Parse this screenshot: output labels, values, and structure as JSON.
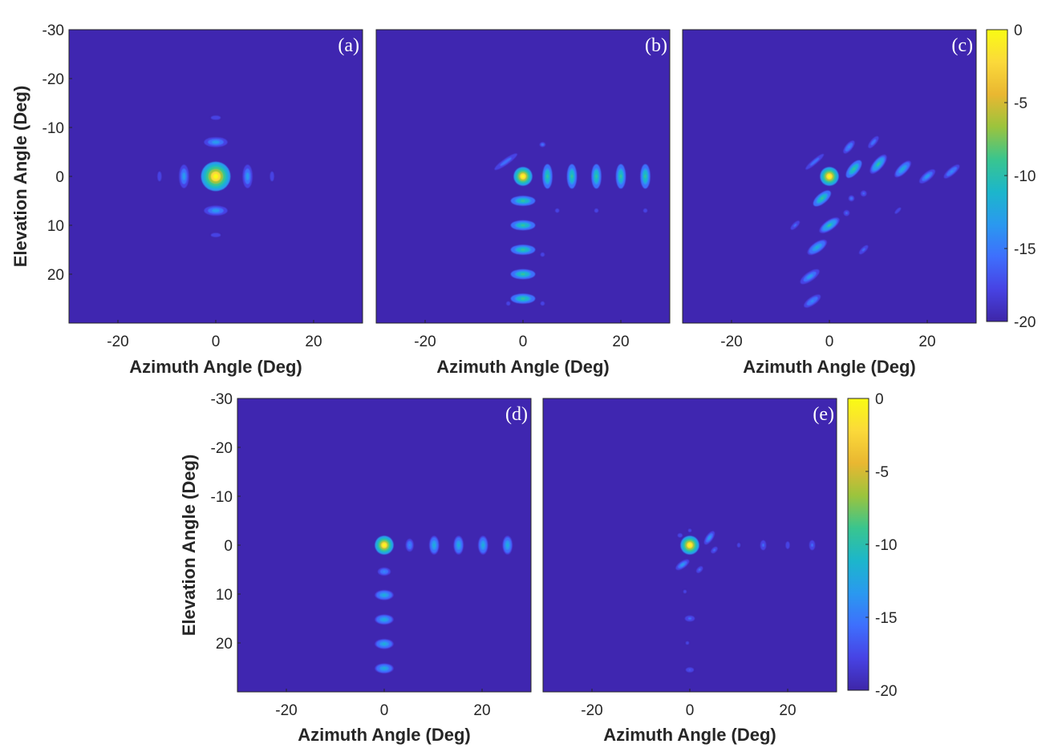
{
  "colors": {
    "background": "#3f26b0",
    "colormap": [
      "#3e26a8",
      "#4743e4",
      "#3e6ffd",
      "#2a99ef",
      "#1cb6cb",
      "#39c58f",
      "#9bc43d",
      "#e9b731",
      "#fbd93a",
      "#f9fb14"
    ]
  },
  "chart_data": [
    {
      "type": "heatmap",
      "label": "(a)",
      "xlabel": "Azimuth Angle (Deg)",
      "ylabel": "Elevation Angle (Deg)",
      "xlim": [
        -30,
        30
      ],
      "ylim": [
        -30,
        30
      ],
      "y_reversed": true,
      "xticks": [
        -20,
        0,
        20
      ],
      "yticks": [
        -30,
        -20,
        -10,
        0,
        10,
        20
      ],
      "colorbar": false,
      "lobes": [
        {
          "az": 0,
          "el": 0,
          "level_db": 0,
          "w": 3.0,
          "h": 3.0
        },
        {
          "az": -6.5,
          "el": 0,
          "level_db": -13,
          "w": 1.0,
          "h": 2.4
        },
        {
          "az": 6.5,
          "el": 0,
          "level_db": -13,
          "w": 1.0,
          "h": 2.4
        },
        {
          "az": -11.5,
          "el": 0,
          "level_db": -17,
          "w": 0.5,
          "h": 1.2
        },
        {
          "az": 11.5,
          "el": 0,
          "level_db": -17,
          "w": 0.5,
          "h": 1.2
        },
        {
          "az": 0,
          "el": -7,
          "level_db": -13,
          "w": 2.4,
          "h": 1.0
        },
        {
          "az": 0,
          "el": 7,
          "level_db": -13,
          "w": 2.4,
          "h": 1.0
        },
        {
          "az": 0,
          "el": -12,
          "level_db": -17,
          "w": 1.2,
          "h": 0.5
        },
        {
          "az": 0,
          "el": 12,
          "level_db": -17,
          "w": 1.2,
          "h": 0.5
        }
      ]
    },
    {
      "type": "heatmap",
      "label": "(b)",
      "xlabel": "Azimuth Angle (Deg)",
      "ylabel": "",
      "xlim": [
        -30,
        30
      ],
      "ylim": [
        -30,
        30
      ],
      "y_reversed": true,
      "xticks": [
        -20,
        0,
        20
      ],
      "yticks": [],
      "colorbar": false,
      "lobes": [
        {
          "az": 0,
          "el": 0,
          "level_db": 0,
          "w": 1.9,
          "h": 1.9
        },
        {
          "az": 5,
          "el": 0,
          "level_db": -8.5,
          "w": 1.0,
          "h": 2.5
        },
        {
          "az": 10,
          "el": 0,
          "level_db": -8.5,
          "w": 1.0,
          "h": 2.5
        },
        {
          "az": 15,
          "el": 0,
          "level_db": -8.5,
          "w": 1.0,
          "h": 2.5
        },
        {
          "az": 20,
          "el": 0,
          "level_db": -8.5,
          "w": 1.0,
          "h": 2.5
        },
        {
          "az": 25,
          "el": 0,
          "level_db": -8.5,
          "w": 1.0,
          "h": 2.5
        },
        {
          "az": 0,
          "el": 5,
          "level_db": -8.5,
          "w": 2.5,
          "h": 1.0
        },
        {
          "az": 0,
          "el": 10,
          "level_db": -8.5,
          "w": 2.5,
          "h": 1.0
        },
        {
          "az": 0,
          "el": 15,
          "level_db": -8.5,
          "w": 2.5,
          "h": 1.0
        },
        {
          "az": 0,
          "el": 20,
          "level_db": -8.5,
          "w": 2.5,
          "h": 1.0
        },
        {
          "az": 0,
          "el": 25,
          "level_db": -8.5,
          "w": 2.5,
          "h": 1.0
        },
        {
          "az": -3.5,
          "el": -3,
          "level_db": -15,
          "w": 2.8,
          "h": 0.6,
          "rot": -35
        },
        {
          "az": 4,
          "el": -6.5,
          "level_db": -15,
          "w": 0.6,
          "h": 0.5
        },
        {
          "az": 7,
          "el": 7,
          "level_db": -17,
          "w": 0.5,
          "h": 0.5
        },
        {
          "az": 15,
          "el": 7,
          "level_db": -17,
          "w": 0.5,
          "h": 0.5
        },
        {
          "az": 25,
          "el": 7,
          "level_db": -17,
          "w": 0.5,
          "h": 0.5
        },
        {
          "az": 4,
          "el": 16,
          "level_db": -17,
          "w": 0.5,
          "h": 0.5
        },
        {
          "az": -3,
          "el": 26,
          "level_db": -17,
          "w": 0.5,
          "h": 0.5
        },
        {
          "az": 4,
          "el": 26,
          "level_db": -17,
          "w": 0.5,
          "h": 0.5
        }
      ]
    },
    {
      "type": "heatmap",
      "label": "(c)",
      "xlabel": "Azimuth Angle (Deg)",
      "ylabel": "",
      "xlim": [
        -30,
        30
      ],
      "ylim": [
        -30,
        30
      ],
      "y_reversed": true,
      "xticks": [
        -20,
        0,
        20
      ],
      "yticks": [],
      "colorbar": true,
      "colorbar_ticks": [
        0,
        -5,
        -10,
        -15,
        -20
      ],
      "clim": [
        -20,
        0
      ],
      "lobes": [
        {
          "az": 0,
          "el": 0,
          "level_db": 0,
          "w": 1.9,
          "h": 1.9
        },
        {
          "az": 5,
          "el": -1.5,
          "level_db": -8.5,
          "w": 2.2,
          "h": 1.0,
          "rot": -50
        },
        {
          "az": 10,
          "el": -2.5,
          "level_db": -9.5,
          "w": 2.4,
          "h": 1.0,
          "rot": -50
        },
        {
          "az": 15,
          "el": -1.5,
          "level_db": -11,
          "w": 2.2,
          "h": 0.9,
          "rot": -45
        },
        {
          "az": 20,
          "el": 0,
          "level_db": -13,
          "w": 2.0,
          "h": 0.8,
          "rot": -40
        },
        {
          "az": 25,
          "el": -1,
          "level_db": -14,
          "w": 2.0,
          "h": 0.7,
          "rot": -40
        },
        {
          "az": -1.5,
          "el": 4.5,
          "level_db": -8.5,
          "w": 2.2,
          "h": 1.0,
          "rot": -40
        },
        {
          "az": 0,
          "el": 10,
          "level_db": -9.5,
          "w": 2.4,
          "h": 1.0,
          "rot": -35
        },
        {
          "az": -2.5,
          "el": 14.5,
          "level_db": -11,
          "w": 2.3,
          "h": 1.0,
          "rot": -35
        },
        {
          "az": -4,
          "el": 20.5,
          "level_db": -13,
          "w": 2.3,
          "h": 0.9,
          "rot": -35
        },
        {
          "az": -3.5,
          "el": 25.5,
          "level_db": -14,
          "w": 2.0,
          "h": 0.8,
          "rot": -35
        },
        {
          "az": 4,
          "el": -6,
          "level_db": -14,
          "w": 1.6,
          "h": 0.7,
          "rot": -50
        },
        {
          "az": 9,
          "el": -7,
          "level_db": -15,
          "w": 1.5,
          "h": 0.6,
          "rot": -50
        },
        {
          "az": -3,
          "el": -3,
          "level_db": -15,
          "w": 2.4,
          "h": 0.5,
          "rot": -40
        },
        {
          "az": 4.5,
          "el": 4.5,
          "level_db": -15,
          "w": 0.6,
          "h": 0.6
        },
        {
          "az": 7,
          "el": 3.5,
          "level_db": -16,
          "w": 0.6,
          "h": 0.6
        },
        {
          "az": 3.5,
          "el": 7.5,
          "level_db": -16,
          "w": 0.6,
          "h": 0.6
        },
        {
          "az": -7,
          "el": 10,
          "level_db": -16,
          "w": 1.2,
          "h": 0.5,
          "rot": -45
        },
        {
          "az": 7,
          "el": 15,
          "level_db": -16,
          "w": 1.2,
          "h": 0.5,
          "rot": -45
        },
        {
          "az": 14,
          "el": 7,
          "level_db": -17,
          "w": 1.0,
          "h": 0.4,
          "rot": -45
        }
      ]
    },
    {
      "type": "heatmap",
      "label": "(d)",
      "xlabel": "Azimuth Angle (Deg)",
      "ylabel": "Elevation Angle (Deg)",
      "xlim": [
        -30,
        30
      ],
      "ylim": [
        -30,
        30
      ],
      "y_reversed": true,
      "xticks": [
        -20,
        0,
        20
      ],
      "yticks": [
        -30,
        -20,
        -10,
        0,
        10,
        20
      ],
      "colorbar": false,
      "lobes": [
        {
          "az": 0,
          "el": 0,
          "level_db": 0,
          "w": 1.9,
          "h": 1.9
        },
        {
          "az": 5.2,
          "el": 0,
          "level_db": -14,
          "w": 0.8,
          "h": 1.3
        },
        {
          "az": 10.2,
          "el": 0,
          "level_db": -12,
          "w": 1.0,
          "h": 1.9
        },
        {
          "az": 15.2,
          "el": 0,
          "level_db": -12,
          "w": 1.0,
          "h": 1.9
        },
        {
          "az": 20.2,
          "el": 0,
          "level_db": -12,
          "w": 1.0,
          "h": 1.9
        },
        {
          "az": 25.2,
          "el": 0,
          "level_db": -12,
          "w": 1.0,
          "h": 1.9
        },
        {
          "az": 0,
          "el": 5.4,
          "level_db": -14,
          "w": 1.3,
          "h": 0.8
        },
        {
          "az": 0,
          "el": 10.2,
          "level_db": -12,
          "w": 1.9,
          "h": 1.0
        },
        {
          "az": 0,
          "el": 15.2,
          "level_db": -12,
          "w": 1.9,
          "h": 1.0
        },
        {
          "az": 0,
          "el": 20.2,
          "level_db": -12,
          "w": 1.9,
          "h": 1.0
        },
        {
          "az": 0,
          "el": 25.2,
          "level_db": -12,
          "w": 1.9,
          "h": 1.0
        }
      ]
    },
    {
      "type": "heatmap",
      "label": "(e)",
      "xlabel": "Azimuth Angle (Deg)",
      "ylabel": "",
      "xlim": [
        -30,
        30
      ],
      "ylim": [
        -30,
        30
      ],
      "y_reversed": true,
      "xticks": [
        -20,
        0,
        20
      ],
      "yticks": [],
      "colorbar": true,
      "colorbar_ticks": [
        0,
        -5,
        -10,
        -15,
        -20
      ],
      "clim": [
        -20,
        0
      ],
      "lobes": [
        {
          "az": 0,
          "el": 0,
          "level_db": 0,
          "w": 1.9,
          "h": 1.9
        },
        {
          "az": 4,
          "el": -1.5,
          "level_db": -13,
          "w": 1.6,
          "h": 0.7,
          "rot": -55
        },
        {
          "az": -1.5,
          "el": 4,
          "level_db": -13,
          "w": 1.6,
          "h": 0.7,
          "rot": -35
        },
        {
          "az": 5,
          "el": 1,
          "level_db": -16,
          "w": 0.8,
          "h": 0.5,
          "rot": -45
        },
        {
          "az": 2,
          "el": 5,
          "level_db": -16,
          "w": 0.8,
          "h": 0.5,
          "rot": -45
        },
        {
          "az": -2,
          "el": -2,
          "level_db": -17,
          "w": 0.6,
          "h": 0.5
        },
        {
          "az": 0,
          "el": -3,
          "level_db": -18,
          "w": 0.5,
          "h": 0.5
        },
        {
          "az": 10,
          "el": 0,
          "level_db": -17.5,
          "w": 0.5,
          "h": 0.7
        },
        {
          "az": 15,
          "el": 0,
          "level_db": -16,
          "w": 0.6,
          "h": 1.0
        },
        {
          "az": 20,
          "el": 0,
          "level_db": -17,
          "w": 0.5,
          "h": 0.9
        },
        {
          "az": 25,
          "el": 0,
          "level_db": -16,
          "w": 0.6,
          "h": 1.0
        },
        {
          "az": -1,
          "el": 9.5,
          "level_db": -17.5,
          "w": 0.5,
          "h": 0.5
        },
        {
          "az": 0,
          "el": 15,
          "level_db": -16,
          "w": 1.0,
          "h": 0.6
        },
        {
          "az": -0.5,
          "el": 20,
          "level_db": -17.5,
          "w": 0.5,
          "h": 0.5
        },
        {
          "az": 0,
          "el": 25.5,
          "level_db": -16.5,
          "w": 1.0,
          "h": 0.6
        }
      ]
    }
  ]
}
